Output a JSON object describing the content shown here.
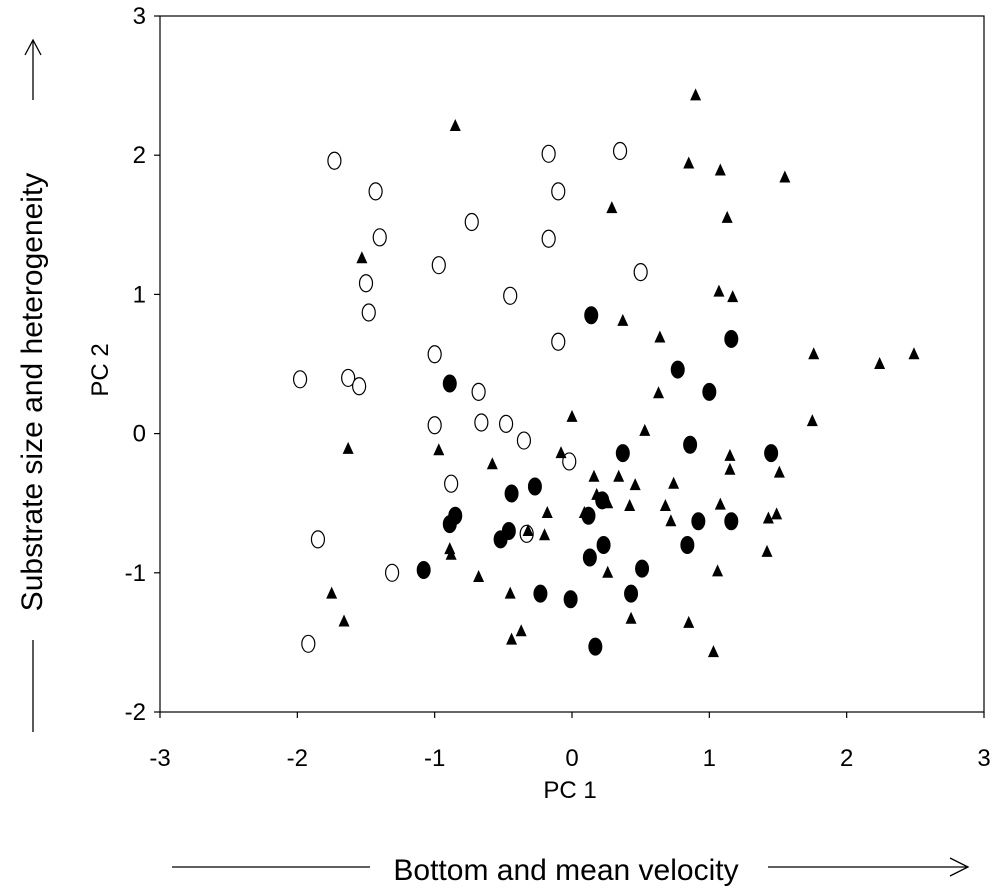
{
  "chart_data": {
    "type": "scatter",
    "xlabel": "PC 1",
    "ylabel": "PC 2",
    "x_axis_description": "Bottom and mean velocity",
    "y_axis_description": "Substrate size and heterogeneity",
    "xlim": [
      -3,
      3
    ],
    "ylim": [
      -2,
      3
    ],
    "x_ticks": [
      "-3",
      "-2",
      "-1",
      "0",
      "1",
      "2",
      "3"
    ],
    "y_ticks": [
      "-2",
      "-1",
      "0",
      "1",
      "2",
      "3"
    ],
    "grid": false,
    "legend": "none",
    "series": [
      {
        "marker": "open-circle",
        "points": [
          [
            -1.73,
            1.96
          ],
          [
            -1.43,
            1.74
          ],
          [
            -1.4,
            1.41
          ],
          [
            -1.5,
            1.08
          ],
          [
            -1.48,
            0.87
          ],
          [
            -0.73,
            1.52
          ],
          [
            -0.97,
            1.21
          ],
          [
            -0.45,
            0.99
          ],
          [
            -0.17,
            2.01
          ],
          [
            -0.1,
            1.74
          ],
          [
            -0.17,
            1.4
          ],
          [
            0.35,
            2.03
          ],
          [
            0.5,
            1.16
          ],
          [
            -0.1,
            0.66
          ],
          [
            -1.98,
            0.39
          ],
          [
            -1.63,
            0.4
          ],
          [
            -1.55,
            0.34
          ],
          [
            -1.0,
            0.57
          ],
          [
            -0.68,
            0.3
          ],
          [
            -1.0,
            0.06
          ],
          [
            -0.66,
            0.08
          ],
          [
            -0.48,
            0.07
          ],
          [
            -0.35,
            -0.05
          ],
          [
            -0.02,
            -0.2
          ],
          [
            -0.88,
            -0.36
          ],
          [
            -1.85,
            -0.76
          ],
          [
            -0.33,
            -0.72
          ],
          [
            -1.31,
            -1.0
          ],
          [
            -1.92,
            -1.51
          ]
        ]
      },
      {
        "marker": "filled-circle",
        "points": [
          [
            0.14,
            0.85
          ],
          [
            1.16,
            0.68
          ],
          [
            -0.89,
            0.36
          ],
          [
            0.77,
            0.46
          ],
          [
            1.0,
            0.3
          ],
          [
            0.86,
            -0.08
          ],
          [
            0.37,
            -0.14
          ],
          [
            1.45,
            -0.14
          ],
          [
            -0.44,
            -0.43
          ],
          [
            -0.27,
            -0.38
          ],
          [
            0.22,
            -0.48
          ],
          [
            0.12,
            -0.59
          ],
          [
            -0.85,
            -0.59
          ],
          [
            -0.89,
            -0.65
          ],
          [
            -0.46,
            -0.7
          ],
          [
            -0.52,
            -0.76
          ],
          [
            0.23,
            -0.8
          ],
          [
            0.92,
            -0.63
          ],
          [
            1.16,
            -0.63
          ],
          [
            0.84,
            -0.8
          ],
          [
            0.13,
            -0.89
          ],
          [
            0.51,
            -0.97
          ],
          [
            -1.08,
            -0.98
          ],
          [
            -0.23,
            -1.15
          ],
          [
            -0.01,
            -1.19
          ],
          [
            0.43,
            -1.15
          ],
          [
            0.17,
            -1.53
          ]
        ]
      },
      {
        "marker": "filled-triangle",
        "points": [
          [
            0.9,
            2.43
          ],
          [
            -0.85,
            2.21
          ],
          [
            0.85,
            1.94
          ],
          [
            1.08,
            1.89
          ],
          [
            1.55,
            1.84
          ],
          [
            0.29,
            1.62
          ],
          [
            1.13,
            1.55
          ],
          [
            -1.53,
            1.26
          ],
          [
            1.07,
            1.02
          ],
          [
            1.17,
            0.98
          ],
          [
            0.37,
            0.81
          ],
          [
            0.64,
            0.69
          ],
          [
            1.76,
            0.57
          ],
          [
            2.24,
            0.5
          ],
          [
            2.49,
            0.57
          ],
          [
            0.63,
            0.29
          ],
          [
            1.75,
            0.09
          ],
          [
            0.0,
            0.12
          ],
          [
            0.53,
            0.02
          ],
          [
            -1.63,
            -0.11
          ],
          [
            -0.97,
            -0.12
          ],
          [
            -0.08,
            -0.14
          ],
          [
            -0.58,
            -0.22
          ],
          [
            1.15,
            -0.16
          ],
          [
            0.34,
            -0.31
          ],
          [
            0.16,
            -0.31
          ],
          [
            0.74,
            -0.36
          ],
          [
            1.15,
            -0.26
          ],
          [
            1.51,
            -0.28
          ],
          [
            0.46,
            -0.37
          ],
          [
            0.18,
            -0.44
          ],
          [
            0.26,
            -0.5
          ],
          [
            0.42,
            -0.52
          ],
          [
            0.68,
            -0.52
          ],
          [
            1.08,
            -0.51
          ],
          [
            1.43,
            -0.61
          ],
          [
            1.49,
            -0.58
          ],
          [
            0.72,
            -0.63
          ],
          [
            0.09,
            -0.57
          ],
          [
            -0.18,
            -0.57
          ],
          [
            -0.32,
            -0.7
          ],
          [
            -0.2,
            -0.73
          ],
          [
            -0.89,
            -0.83
          ],
          [
            -0.88,
            -0.87
          ],
          [
            -0.68,
            -1.03
          ],
          [
            0.26,
            -1.0
          ],
          [
            1.06,
            -0.99
          ],
          [
            1.42,
            -0.85
          ],
          [
            -1.75,
            -1.15
          ],
          [
            -0.45,
            -1.15
          ],
          [
            -1.66,
            -1.35
          ],
          [
            -0.37,
            -1.42
          ],
          [
            -0.44,
            -1.48
          ],
          [
            0.43,
            -1.33
          ],
          [
            0.85,
            -1.36
          ],
          [
            1.03,
            -1.57
          ]
        ]
      }
    ]
  }
}
